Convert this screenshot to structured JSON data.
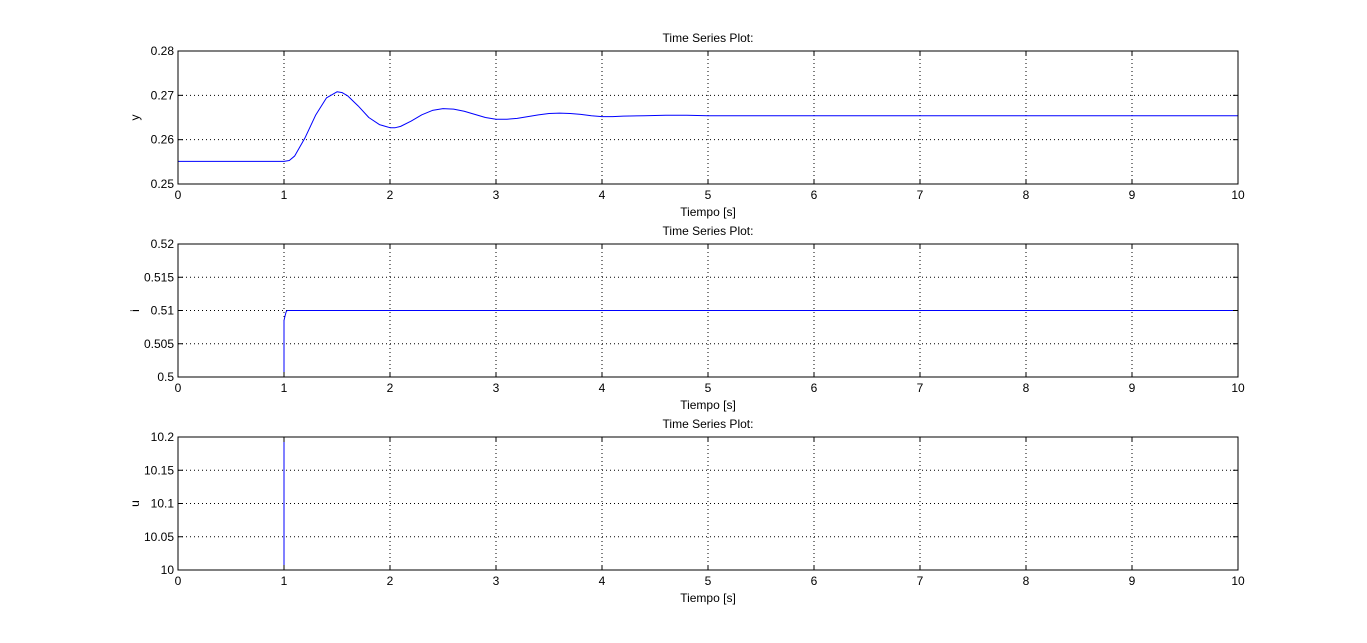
{
  "chart_data": [
    {
      "type": "line",
      "title": "Time Series Plot:",
      "xlabel": "Tiempo [s]",
      "ylabel": "y",
      "xlim": [
        0,
        10
      ],
      "ylim": [
        0.25,
        0.28
      ],
      "xticks": [
        "0",
        "1",
        "2",
        "3",
        "4",
        "5",
        "6",
        "7",
        "8",
        "9",
        "10"
      ],
      "yticks": [
        "0.25",
        "0.26",
        "0.27",
        "0.28"
      ],
      "grid": true,
      "line_color": "#0000ff",
      "series": [
        {
          "x": [
            0,
            1.0,
            1.05,
            1.1,
            1.2,
            1.3,
            1.4,
            1.5,
            1.55,
            1.6,
            1.7,
            1.8,
            1.9,
            2.0,
            2.05,
            2.1,
            2.2,
            2.3,
            2.4,
            2.5,
            2.6,
            2.7,
            2.8,
            2.9,
            3.0,
            3.1,
            3.2,
            3.3,
            3.4,
            3.5,
            3.6,
            3.7,
            3.8,
            3.9,
            4.0,
            4.1,
            4.2,
            4.4,
            4.6,
            4.8,
            5.0,
            5.5,
            6.0,
            7.0,
            8.0,
            9.0,
            10.0
          ],
          "y": [
            0.2551,
            0.2551,
            0.2553,
            0.2563,
            0.2605,
            0.2656,
            0.2694,
            0.2708,
            0.2706,
            0.2699,
            0.2676,
            0.265,
            0.2634,
            0.2627,
            0.2627,
            0.263,
            0.2642,
            0.2656,
            0.2666,
            0.267,
            0.2669,
            0.2664,
            0.2657,
            0.265,
            0.2646,
            0.2646,
            0.2648,
            0.2652,
            0.2656,
            0.2659,
            0.266,
            0.2659,
            0.2657,
            0.2654,
            0.2652,
            0.2652,
            0.2653,
            0.2654,
            0.2655,
            0.2655,
            0.2654,
            0.2654,
            0.2654,
            0.2654,
            0.2654,
            0.2654,
            0.2654
          ]
        }
      ]
    },
    {
      "type": "line",
      "title": "Time Series Plot:",
      "xlabel": "Tiempo [s]",
      "ylabel": "i",
      "xlim": [
        0,
        10
      ],
      "ylim": [
        0.5,
        0.52
      ],
      "xticks": [
        "0",
        "1",
        "2",
        "3",
        "4",
        "5",
        "6",
        "7",
        "8",
        "9",
        "10"
      ],
      "yticks": [
        "0.5",
        "0.505",
        "0.51",
        "0.515",
        "0.52"
      ],
      "grid": true,
      "line_color": "#0000ff",
      "series": [
        {
          "x": [
            1.0,
            1.0,
            1.01,
            1.02,
            1.03,
            2,
            3,
            4,
            5,
            6,
            7,
            8,
            9,
            10
          ],
          "y": [
            0.5,
            0.5085,
            0.5092,
            0.5098,
            0.51,
            0.51,
            0.51,
            0.51,
            0.51,
            0.51,
            0.51,
            0.51,
            0.51,
            0.51
          ]
        }
      ]
    },
    {
      "type": "line",
      "title": "Time Series Plot:",
      "xlabel": "Tiempo [s]",
      "ylabel": "u",
      "xlim": [
        0,
        10
      ],
      "ylim": [
        10,
        10.2
      ],
      "xticks": [
        "0",
        "1",
        "2",
        "3",
        "4",
        "5",
        "6",
        "7",
        "8",
        "9",
        "10"
      ],
      "yticks": [
        "10",
        "10.05",
        "10.1",
        "10.15",
        "10.2"
      ],
      "grid": true,
      "line_color": "#0000ff",
      "series": [
        {
          "x": [
            1.0,
            1.0
          ],
          "y": [
            10.0,
            10.2
          ]
        }
      ]
    }
  ]
}
